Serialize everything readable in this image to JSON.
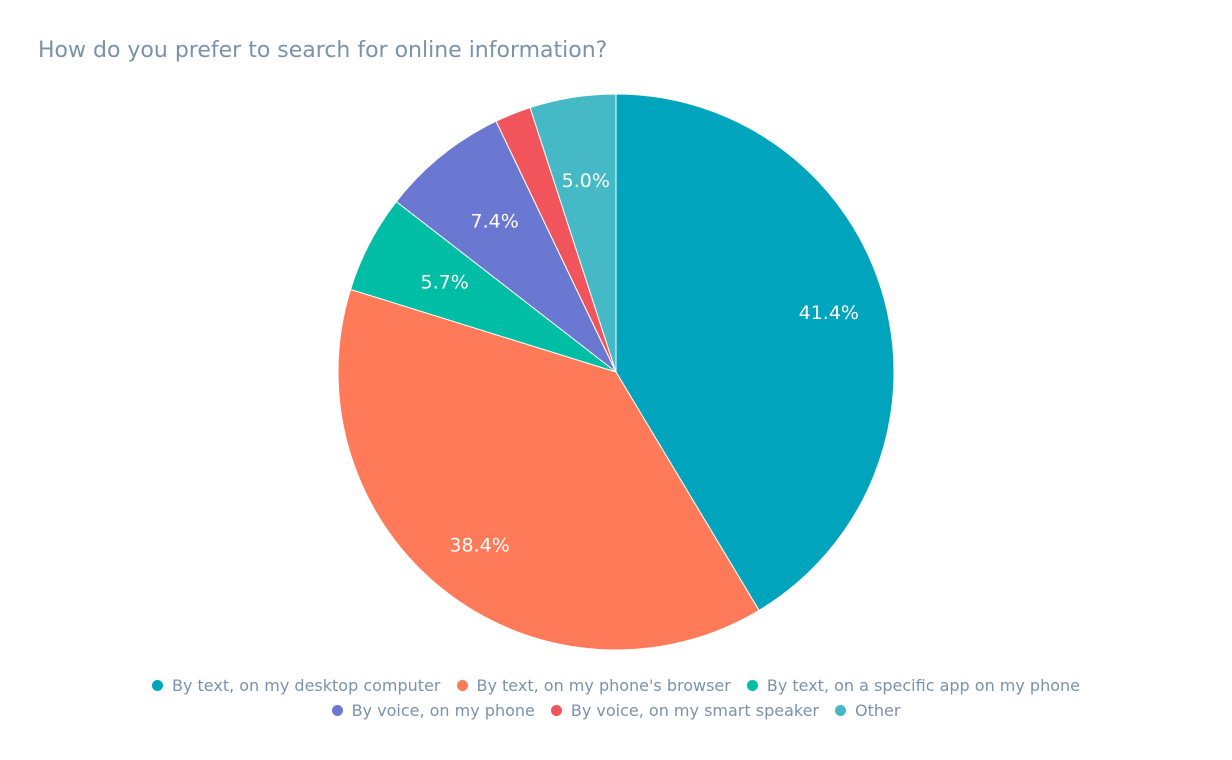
{
  "chart_data": {
    "type": "pie",
    "title": "How do you prefer to search for online information?",
    "slices": [
      {
        "label": "By text, on my desktop computer",
        "value": 41.4,
        "color": "#00a5bd",
        "text": "41.4%"
      },
      {
        "label": "By text, on my phone's browser",
        "value": 38.4,
        "color": "#ff7a59",
        "text": "38.4%"
      },
      {
        "label": "By text, on a specific app on my phone",
        "value": 5.7,
        "color": "#00bda5",
        "text": "5.7%"
      },
      {
        "label": "By voice, on my phone",
        "value": 7.4,
        "color": "#6a78d1",
        "text": "7.4%"
      },
      {
        "label": "By voice, on my smart speaker",
        "value": 2.1,
        "color": "#f2545b",
        "text": ""
      },
      {
        "label": "Other",
        "value": 5.0,
        "color": "#45bac6",
        "text": "5.0%"
      }
    ],
    "direction": "clockwise",
    "start": "top",
    "legend_position": "bottom-center"
  }
}
